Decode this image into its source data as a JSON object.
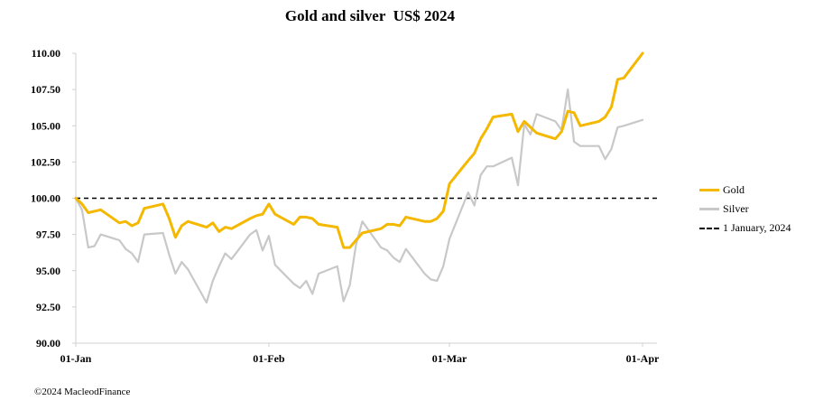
{
  "chart_data": {
    "type": "line",
    "title": "Gold and silver  US$ 2024",
    "xlabel": "",
    "ylabel": "",
    "ylim": [
      90,
      110
    ],
    "yticks": [
      "110.00",
      "107.50",
      "105.00",
      "102.50",
      "100.00",
      "97.50",
      "95.00",
      "92.50",
      "90.00"
    ],
    "xticks": [
      {
        "label": "01-Jan",
        "day": 0
      },
      {
        "label": "01-Feb",
        "day": 31
      },
      {
        "label": "01-Mar",
        "day": 60
      },
      {
        "label": "01-Apr",
        "day": 91
      }
    ],
    "x_unit": "day of 2024 (0 = 01-Jan)",
    "reference_line": {
      "name": "1 January, 2024",
      "value": 100,
      "style": "dashed"
    },
    "legend_position": "right",
    "series": [
      {
        "name": "Gold",
        "color": "#f5b800",
        "x": [
          0,
          1,
          2,
          3,
          4,
          7,
          8,
          9,
          10,
          11,
          14,
          15,
          16,
          17,
          18,
          21,
          22,
          23,
          24,
          25,
          28,
          29,
          30,
          31,
          32,
          35,
          36,
          37,
          38,
          39,
          42,
          43,
          44,
          45,
          46,
          49,
          50,
          51,
          52,
          53,
          56,
          57,
          58,
          59,
          60,
          63,
          64,
          65,
          66,
          67,
          70,
          71,
          72,
          73,
          74,
          77,
          78,
          79,
          80,
          81,
          84,
          85,
          86,
          87,
          88,
          91
        ],
        "y": [
          100.0,
          99.6,
          99.0,
          99.1,
          99.2,
          98.3,
          98.4,
          98.1,
          98.3,
          99.3,
          99.6,
          98.6,
          97.3,
          98.1,
          98.4,
          98.0,
          98.3,
          97.7,
          98.0,
          97.9,
          98.6,
          98.8,
          98.9,
          99.6,
          98.9,
          98.2,
          98.7,
          98.7,
          98.6,
          98.2,
          98.0,
          96.6,
          96.6,
          97.1,
          97.6,
          97.9,
          98.2,
          98.2,
          98.1,
          98.7,
          98.4,
          98.4,
          98.6,
          99.1,
          101.0,
          102.6,
          103.1,
          104.1,
          104.8,
          105.6,
          105.8,
          104.6,
          105.3,
          104.9,
          104.5,
          104.1,
          104.6,
          106.0,
          105.9,
          105.0,
          105.3,
          105.6,
          106.3,
          108.2,
          108.3,
          110.0
        ]
      },
      {
        "name": "Silver",
        "color": "#c8c8c8",
        "x": [
          0,
          1,
          2,
          3,
          4,
          7,
          8,
          9,
          10,
          11,
          14,
          15,
          16,
          17,
          18,
          21,
          22,
          23,
          24,
          25,
          28,
          29,
          30,
          31,
          32,
          35,
          36,
          37,
          38,
          39,
          42,
          43,
          44,
          45,
          46,
          49,
          50,
          51,
          52,
          53,
          56,
          57,
          58,
          59,
          60,
          63,
          64,
          65,
          66,
          67,
          70,
          71,
          72,
          73,
          74,
          77,
          78,
          79,
          80,
          81,
          84,
          85,
          86,
          87,
          88,
          91
        ],
        "y": [
          100.0,
          99.2,
          96.6,
          96.7,
          97.5,
          97.1,
          96.5,
          96.2,
          95.6,
          97.5,
          97.6,
          96.1,
          94.8,
          95.6,
          95.1,
          92.8,
          94.3,
          95.3,
          96.2,
          95.8,
          97.5,
          97.8,
          96.4,
          97.4,
          95.4,
          94.1,
          93.8,
          94.3,
          93.4,
          94.8,
          95.3,
          92.9,
          94.0,
          96.8,
          98.4,
          96.6,
          96.4,
          95.9,
          95.6,
          96.5,
          94.8,
          94.4,
          94.3,
          95.3,
          97.2,
          100.4,
          99.5,
          101.6,
          102.2,
          102.2,
          102.8,
          100.9,
          105.1,
          104.4,
          105.8,
          105.3,
          104.7,
          107.5,
          103.9,
          103.6,
          103.6,
          102.7,
          103.4,
          104.9,
          105.0,
          105.4
        ]
      }
    ]
  },
  "footer": {
    "copyright": "©2024 MacleodFinance"
  }
}
